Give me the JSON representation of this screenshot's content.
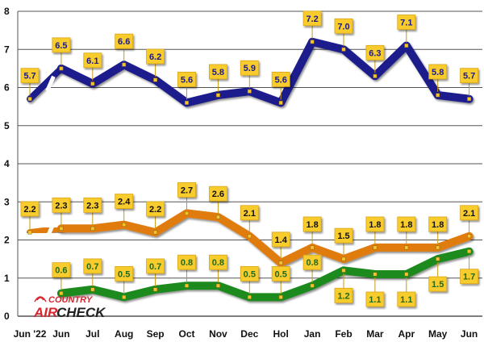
{
  "logo": {
    "top": "COUNTRY",
    "left": "AIR",
    "right": "CHECK"
  },
  "chart_data": {
    "type": "line",
    "categories": [
      "Jun '22",
      "Jun",
      "Jul",
      "Aug",
      "Sep",
      "Oct",
      "Nov",
      "Dec",
      "Hol",
      "Jan",
      "Feb",
      "Mar",
      "Apr",
      "May",
      "Jun"
    ],
    "ylim": [
      0,
      8
    ],
    "yticks": [
      0,
      1,
      2,
      3,
      4,
      5,
      6,
      7,
      8
    ],
    "grid": true,
    "series": [
      {
        "color": "#1a1a8c",
        "values": [
          5.7,
          6.5,
          6.1,
          6.6,
          6.2,
          5.6,
          5.8,
          5.9,
          5.6,
          7.2,
          7.0,
          6.3,
          7.1,
          5.8,
          5.7
        ],
        "labels": [
          "5.7",
          "6.5",
          "6.1",
          "6.6",
          "6.2",
          "5.6",
          "5.8",
          "5.9",
          "5.6",
          "7.2",
          "7.0",
          "6.3",
          "7.1",
          "5.8",
          "5.7"
        ],
        "label_pos": [
          "above",
          "above",
          "above",
          "above",
          "above",
          "above",
          "above",
          "above",
          "above",
          "above",
          "above",
          "above",
          "above",
          "above",
          "above"
        ],
        "label_color": "#1a1a8c",
        "break_after_first": true
      },
      {
        "color": "#e07c10",
        "values": [
          2.2,
          2.3,
          2.3,
          2.4,
          2.2,
          2.7,
          2.6,
          2.1,
          1.4,
          1.8,
          1.5,
          1.8,
          1.8,
          1.8,
          2.1
        ],
        "labels": [
          "2.2",
          "2.3",
          "2.3",
          "2.4",
          "2.2",
          "2.7",
          "2.6",
          "2.1",
          "1.4",
          "1.8",
          "1.5",
          "1.8",
          "1.8",
          "1.8",
          "2.1"
        ],
        "label_pos": [
          "above",
          "above",
          "above",
          "above",
          "above",
          "above",
          "above",
          "above",
          "above",
          "above",
          "above",
          "above",
          "above",
          "above",
          "above"
        ],
        "label_color": "#111111",
        "break_after_first": true
      },
      {
        "color": "#1e8a1e",
        "values": [
          null,
          0.6,
          0.7,
          0.5,
          0.7,
          0.8,
          0.8,
          0.5,
          0.5,
          0.8,
          1.2,
          1.1,
          1.1,
          1.5,
          1.7
        ],
        "labels": [
          "",
          "0.6",
          "0.7",
          "0.5",
          "0.7",
          "0.8",
          "0.8",
          "0.5",
          "0.5",
          "0.8",
          "1.2",
          "1.1",
          "1.1",
          "1.5",
          "1.7"
        ],
        "label_pos": [
          "above",
          "above",
          "above",
          "above",
          "above",
          "above",
          "above",
          "above",
          "above",
          "above",
          "below",
          "below",
          "below",
          "below",
          "below"
        ],
        "label_color": "#1e6a1e",
        "break_after_first": false
      }
    ]
  }
}
